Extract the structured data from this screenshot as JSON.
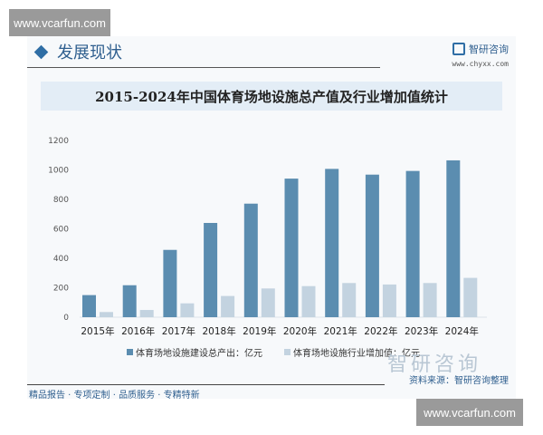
{
  "watermark": "www.vcarfun.com",
  "section": {
    "title": "发展现状",
    "brand": "智研咨询",
    "brand_url": "www.chyxx.com"
  },
  "footer": {
    "slogan": "精品报告 · 专项定制 · 品质服务 · 专精特新",
    "source": "资料来源：智研咨询整理",
    "brand_big": "智研咨询"
  },
  "colors": {
    "series1": "#5b8db0",
    "series2": "#c3d3e0"
  },
  "chart_data": {
    "type": "bar",
    "title": "2015-2024年中国体育场地设施总产值及行业增加值统计",
    "categories": [
      "2015年",
      "2016年",
      "2017年",
      "2018年",
      "2019年",
      "2020年",
      "2021年",
      "2022年",
      "2023年",
      "2024年"
    ],
    "series": [
      {
        "name": "体育场地设施建设总产出：亿元",
        "values": [
          150,
          217,
          457,
          640,
          771,
          941,
          1007,
          968,
          993,
          1065
        ]
      },
      {
        "name": "体育场地设施行业增加值：亿元",
        "values": [
          35,
          49,
          94,
          144,
          195,
          211,
          232,
          222,
          232,
          267
        ]
      }
    ],
    "yticks": [
      "0",
      "200",
      "400",
      "600",
      "800",
      "1000",
      "1200"
    ],
    "ylim": [
      0,
      1200
    ],
    "xlabel": "",
    "ylabel": "",
    "legend": "bottom",
    "grid": false
  }
}
